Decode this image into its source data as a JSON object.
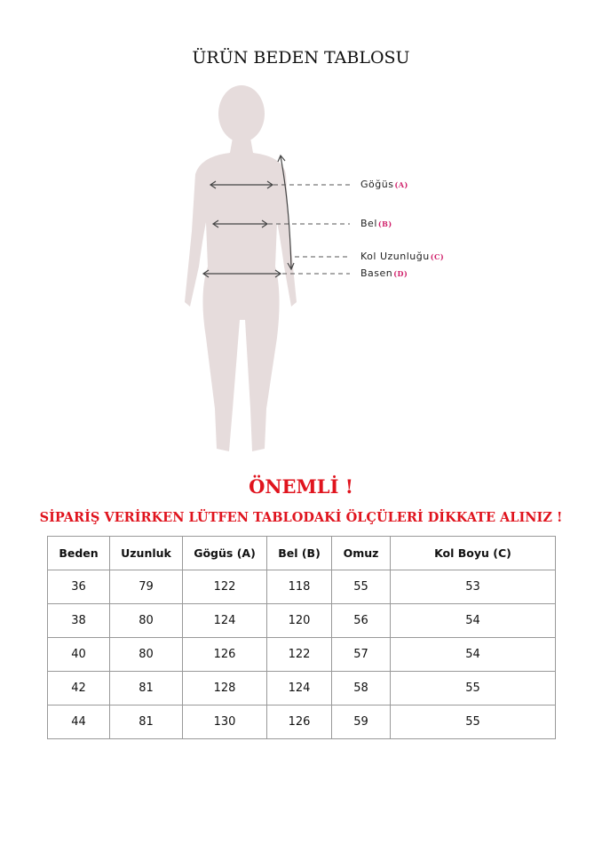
{
  "title": "ÜRÜN BEDEN TABLOSU",
  "diagram": {
    "labels": [
      {
        "name": "Göğüs",
        "key": "(A)"
      },
      {
        "name": "Bel",
        "key": "(B)"
      },
      {
        "name": "Kol Uzunluğu",
        "key": "(C)"
      },
      {
        "name": "Basen",
        "key": "(D)"
      }
    ],
    "silhouette_color": "#e6dcdc",
    "key_color": "#d0206a"
  },
  "important": "ÖNEMLİ !",
  "warning": "SİPARİŞ VERİRKEN LÜTFEN TABLODAKİ ÖLÇÜLERİ DİKKATE ALINIZ !",
  "accent_color": "#e0141e",
  "table": {
    "headers": [
      "Beden",
      "Uzunluk",
      "Gögüs (A)",
      "Bel (B)",
      "Omuz",
      "Kol Boyu (C)"
    ],
    "rows": [
      [
        "36",
        "79",
        "122",
        "118",
        "55",
        "53"
      ],
      [
        "38",
        "80",
        "124",
        "120",
        "56",
        "54"
      ],
      [
        "40",
        "80",
        "126",
        "122",
        "57",
        "54"
      ],
      [
        "42",
        "81",
        "128",
        "124",
        "58",
        "55"
      ],
      [
        "44",
        "81",
        "130",
        "126",
        "59",
        "55"
      ]
    ]
  }
}
